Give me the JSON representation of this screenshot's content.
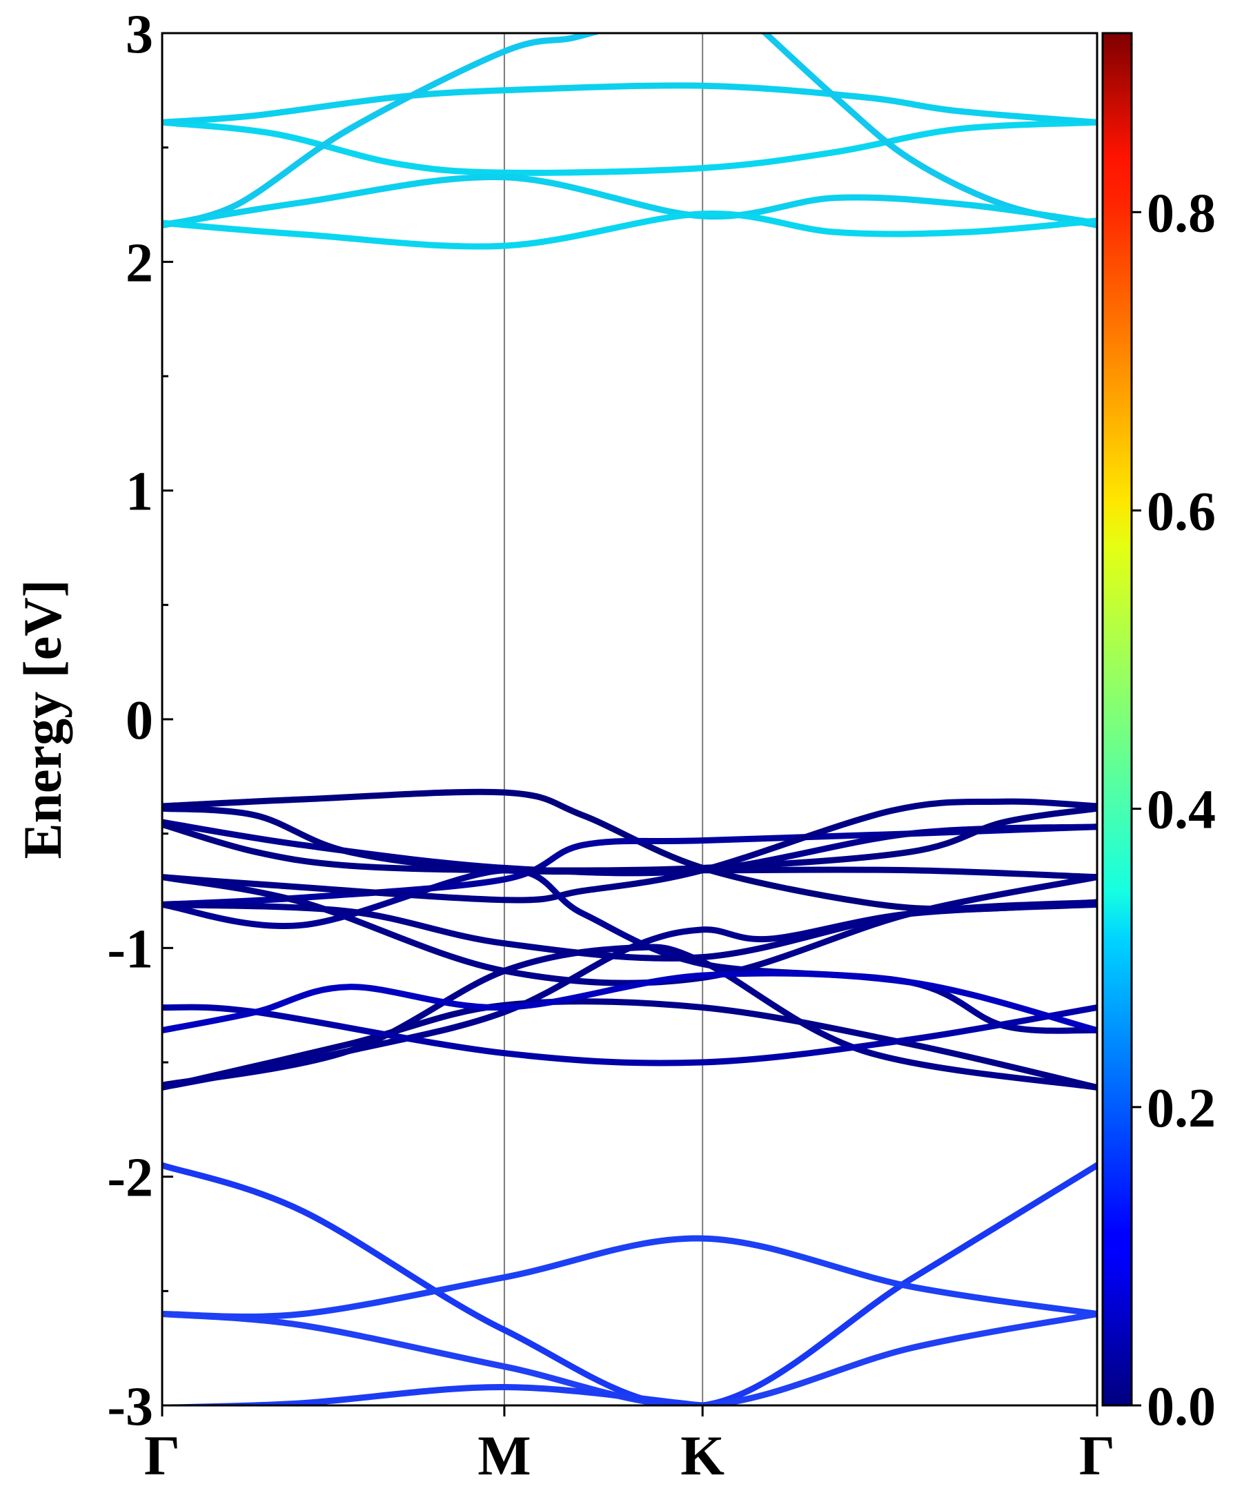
{
  "chart_data": {
    "type": "line",
    "title": "",
    "xlabel": "",
    "ylabel": "Energy [eV]",
    "ylim": [
      -3,
      3
    ],
    "xlim": [
      0,
      1
    ],
    "y_ticks": [
      {
        "value": -3,
        "label": "-3"
      },
      {
        "value": -2,
        "label": "-2"
      },
      {
        "value": -1,
        "label": "-1"
      },
      {
        "value": 0,
        "label": "0"
      },
      {
        "value": 1,
        "label": "1"
      },
      {
        "value": 2,
        "label": "2"
      },
      {
        "value": 3,
        "label": "3"
      }
    ],
    "y_minor_ticks": [
      -2.5,
      -1.5,
      -0.5,
      0.5,
      1.5,
      2.5
    ],
    "k_points": [
      {
        "label": "Γ",
        "x": 0.0
      },
      {
        "label": "M",
        "x": 0.366
      },
      {
        "label": "K",
        "x": 0.578
      },
      {
        "label": "Γ",
        "x": 1.0
      }
    ],
    "colorbar": {
      "colormap": "jet",
      "range": [
        0,
        0.92
      ],
      "ticks": [
        {
          "value": 0.0,
          "label": "0.0"
        },
        {
          "value": 0.2,
          "label": "0.2"
        },
        {
          "value": 0.4,
          "label": "0.4"
        },
        {
          "value": 0.6,
          "label": "0.6"
        },
        {
          "value": 0.8,
          "label": "0.8"
        }
      ]
    },
    "grid": "vertical lines at high-symmetry points",
    "series": [
      {
        "color": "#0ad6f0",
        "points": [
          [
            0,
            2.61
          ],
          [
            0.12,
            2.56
          ],
          [
            0.25,
            2.43
          ],
          [
            0.366,
            2.39
          ],
          [
            0.578,
            2.41
          ],
          [
            0.72,
            2.48
          ],
          [
            0.85,
            2.58
          ],
          [
            1,
            2.61
          ]
        ]
      },
      {
        "color": "#0cd0ee",
        "points": [
          [
            0,
            2.61
          ],
          [
            0.1,
            2.64
          ],
          [
            0.25,
            2.72
          ],
          [
            0.366,
            2.75
          ],
          [
            0.578,
            2.77
          ],
          [
            0.75,
            2.72
          ],
          [
            0.85,
            2.66
          ],
          [
            1,
            2.61
          ]
        ]
      },
      {
        "color": "#12c8ee",
        "points": [
          [
            0,
            2.16
          ],
          [
            0.08,
            2.25
          ],
          [
            0.2,
            2.58
          ],
          [
            0.366,
            2.92
          ],
          [
            0.44,
            2.98
          ],
          [
            0.5,
            3.05
          ]
        ]
      },
      {
        "color": "#12c8ee",
        "points": [
          [
            0.64,
            3.02
          ],
          [
            0.72,
            2.72
          ],
          [
            0.8,
            2.45
          ],
          [
            0.9,
            2.25
          ],
          [
            1,
            2.16
          ]
        ]
      },
      {
        "color": "#0cd0ee",
        "points": [
          [
            0,
            2.16
          ],
          [
            0.15,
            2.26
          ],
          [
            0.366,
            2.37
          ],
          [
            0.578,
            2.2
          ],
          [
            0.72,
            2.28
          ],
          [
            0.86,
            2.25
          ],
          [
            1,
            2.17
          ]
        ]
      },
      {
        "color": "#0ad6f0",
        "points": [
          [
            0,
            2.17
          ],
          [
            0.15,
            2.12
          ],
          [
            0.366,
            2.07
          ],
          [
            0.578,
            2.21
          ],
          [
            0.72,
            2.13
          ],
          [
            0.86,
            2.13
          ],
          [
            1,
            2.18
          ]
        ]
      },
      {
        "color": "#00007e",
        "points": [
          [
            0,
            -0.38
          ],
          [
            0.15,
            -0.35
          ],
          [
            0.366,
            -0.32
          ],
          [
            0.45,
            -0.42
          ],
          [
            0.578,
            -0.65
          ],
          [
            0.75,
            -0.8
          ],
          [
            0.86,
            -0.83
          ],
          [
            1,
            -0.8
          ]
        ]
      },
      {
        "color": "#00009e",
        "points": [
          [
            0,
            -0.81
          ],
          [
            0.15,
            -0.78
          ],
          [
            0.366,
            -0.7
          ],
          [
            0.45,
            -0.55
          ],
          [
            0.578,
            -0.53
          ],
          [
            0.8,
            -0.5
          ],
          [
            1,
            -0.47
          ]
        ]
      },
      {
        "color": "#000090",
        "points": [
          [
            0,
            -0.45
          ],
          [
            0.15,
            -0.55
          ],
          [
            0.366,
            -0.65
          ],
          [
            0.578,
            -0.66
          ],
          [
            0.8,
            -0.5
          ],
          [
            1,
            -0.47
          ]
        ]
      },
      {
        "color": "#000086",
        "points": [
          [
            0,
            -0.39
          ],
          [
            0.1,
            -0.42
          ],
          [
            0.2,
            -0.58
          ],
          [
            0.366,
            -0.66
          ],
          [
            0.578,
            -0.66
          ],
          [
            0.8,
            -0.66
          ],
          [
            1,
            -0.69
          ]
        ]
      },
      {
        "color": "#000084",
        "points": [
          [
            0,
            -0.46
          ],
          [
            0.1,
            -0.58
          ],
          [
            0.2,
            -0.64
          ],
          [
            0.366,
            -0.66
          ],
          [
            0.578,
            -0.65
          ],
          [
            0.8,
            -0.58
          ],
          [
            0.9,
            -0.45
          ],
          [
            1,
            -0.39
          ]
        ]
      },
      {
        "color": "#000086",
        "points": [
          [
            0,
            -0.69
          ],
          [
            0.1,
            -0.72
          ],
          [
            0.366,
            -0.79
          ],
          [
            0.45,
            -0.75
          ],
          [
            0.578,
            -0.66
          ],
          [
            0.78,
            -0.4
          ],
          [
            0.9,
            -0.36
          ],
          [
            1,
            -0.38
          ]
        ]
      },
      {
        "color": "#00008a",
        "points": [
          [
            0,
            -0.69
          ],
          [
            0.15,
            -0.8
          ],
          [
            0.366,
            -1.1
          ],
          [
            0.578,
            -1.13
          ],
          [
            0.8,
            -0.85
          ],
          [
            1,
            -0.69
          ]
        ]
      },
      {
        "color": "#000094",
        "points": [
          [
            0,
            -0.81
          ],
          [
            0.15,
            -0.9
          ],
          [
            0.366,
            -0.66
          ],
          [
            0.45,
            -0.85
          ],
          [
            0.578,
            -1.07
          ],
          [
            0.8,
            -1.15
          ],
          [
            0.9,
            -1.34
          ],
          [
            1,
            -1.36
          ]
        ]
      },
      {
        "color": "#00008c",
        "points": [
          [
            0,
            -1.6
          ],
          [
            0.2,
            -1.45
          ],
          [
            0.366,
            -1.1
          ],
          [
            0.5,
            -1.0
          ],
          [
            0.578,
            -1.06
          ],
          [
            0.75,
            -1.45
          ],
          [
            1,
            -1.61
          ]
        ]
      },
      {
        "color": "#000088",
        "points": [
          [
            0,
            -1.61
          ],
          [
            0.2,
            -1.42
          ],
          [
            0.366,
            -1.25
          ],
          [
            0.578,
            -1.26
          ],
          [
            0.8,
            -1.42
          ],
          [
            1,
            -1.61
          ]
        ]
      },
      {
        "color": "#00008a",
        "points": [
          [
            0,
            -0.81
          ],
          [
            0.2,
            -0.84
          ],
          [
            0.366,
            -0.98
          ],
          [
            0.578,
            -1.04
          ],
          [
            0.8,
            -0.85
          ],
          [
            1,
            -0.8
          ]
        ]
      },
      {
        "color": "#00008e",
        "points": [
          [
            0,
            -1.61
          ],
          [
            0.2,
            -1.45
          ],
          [
            0.366,
            -1.28
          ],
          [
            0.5,
            -1.0
          ],
          [
            0.578,
            -0.92
          ],
          [
            0.65,
            -0.96
          ],
          [
            0.8,
            -0.85
          ],
          [
            1,
            -0.81
          ]
        ]
      },
      {
        "color": "#0000a8",
        "points": [
          [
            0,
            -1.26
          ],
          [
            0.1,
            -1.28
          ],
          [
            0.366,
            -1.46
          ],
          [
            0.578,
            -1.5
          ],
          [
            0.8,
            -1.4
          ],
          [
            1,
            -1.26
          ]
        ]
      },
      {
        "color": "#0000c0",
        "points": [
          [
            0,
            -1.36
          ],
          [
            0.1,
            -1.28
          ],
          [
            0.2,
            -1.17
          ],
          [
            0.366,
            -1.26
          ],
          [
            0.578,
            -1.12
          ],
          [
            0.8,
            -1.15
          ],
          [
            1,
            -1.36
          ]
        ]
      },
      {
        "color": "#1838f4",
        "points": [
          [
            0,
            -1.95
          ],
          [
            0.15,
            -2.15
          ],
          [
            0.366,
            -2.67
          ],
          [
            0.578,
            -3.0
          ],
          [
            0.8,
            -2.45
          ],
          [
            1,
            -1.95
          ]
        ]
      },
      {
        "color": "#1c40f4",
        "points": [
          [
            0,
            -2.6
          ],
          [
            0.15,
            -2.6
          ],
          [
            0.366,
            -2.44
          ],
          [
            0.578,
            -2.27
          ],
          [
            0.8,
            -2.48
          ],
          [
            1,
            -2.6
          ]
        ]
      },
      {
        "color": "#2040f4",
        "points": [
          [
            0,
            -2.6
          ],
          [
            0.15,
            -2.65
          ],
          [
            0.366,
            -2.83
          ],
          [
            0.578,
            -3.0
          ],
          [
            0.8,
            -2.75
          ],
          [
            1,
            -2.6
          ]
        ]
      },
      {
        "color": "#1c3cf4",
        "points": [
          [
            0,
            -3.01
          ],
          [
            0.15,
            -2.99
          ],
          [
            0.366,
            -2.92
          ],
          [
            0.578,
            -3.0
          ],
          [
            0.65,
            -3.02
          ]
        ]
      }
    ]
  }
}
